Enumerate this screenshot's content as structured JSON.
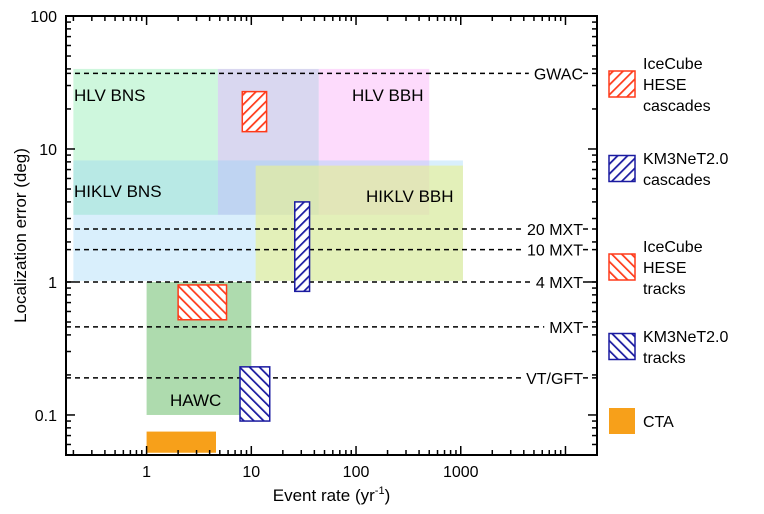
{
  "chart_data": {
    "type": "area",
    "xlabel": "Event rate (yr",
    "xlabel_sup": "-1",
    "xlabel_end": ")",
    "ylabel": "Localization error (deg)",
    "x_scale": "log",
    "y_scale": "log",
    "xlim": [
      0.17,
      20000
    ],
    "ylim": [
      0.05,
      100
    ],
    "x_ticks": [
      {
        "value": 1,
        "label": "1"
      },
      {
        "value": 10,
        "label": "10"
      },
      {
        "value": 100,
        "label": "100"
      },
      {
        "value": 1000,
        "label": "1000"
      }
    ],
    "y_ticks": [
      {
        "value": 0.1,
        "label": "0.1"
      },
      {
        "value": 1,
        "label": "1"
      },
      {
        "value": 10,
        "label": "10"
      },
      {
        "value": 100,
        "label": "100"
      }
    ],
    "grid": false,
    "legend_position": "right, outside",
    "regions": [
      {
        "name": "HLV BNS",
        "x": [
          0.2,
          4.8
        ],
        "y": [
          3.2,
          40
        ],
        "color": "#9ef0bb",
        "opacity": 0.5
      },
      {
        "name": "HLV BBH",
        "x": [
          44,
          500
        ],
        "y": [
          3.2,
          40
        ],
        "color": "#fa98f7",
        "opacity": 0.35
      },
      {
        "name": "",
        "x": [
          4.8,
          44
        ],
        "y": [
          3.2,
          40
        ],
        "color": "#b9b6e3",
        "opacity": 0.55
      },
      {
        "name": "HIKLV BNS",
        "x": [
          0.2,
          1050
        ],
        "y": [
          1.02,
          8.2
        ],
        "color": "#88cef5",
        "opacity": 0.32
      },
      {
        "name": "HIKLV BBH",
        "x": [
          11,
          1050
        ],
        "y": [
          1.02,
          7.5
        ],
        "color": "#e8f08f",
        "opacity": 0.62
      },
      {
        "name": "HAWC",
        "x": [
          1,
          10
        ],
        "y": [
          0.1,
          1
        ],
        "color": "#4cb04c",
        "opacity": 0.45
      }
    ],
    "hatched_boxes": [
      {
        "series": "IceCube HESE cascades",
        "x": [
          8.2,
          14
        ],
        "y": [
          13.5,
          27
        ],
        "color": "#ff3a1a"
      },
      {
        "series": "KM3NeT2.0 cascades",
        "x": [
          26,
          36
        ],
        "y": [
          0.85,
          4
        ],
        "color": "#1a1aa0"
      },
      {
        "series": "IceCube HESE tracks",
        "x": [
          2,
          5.8
        ],
        "y": [
          0.52,
          0.95
        ],
        "color": "#ff3a1a"
      },
      {
        "series": "KM3NeT2.0 tracks",
        "x": [
          7.8,
          15
        ],
        "y": [
          0.09,
          0.23
        ],
        "color": "#1a1aa0"
      }
    ],
    "solid_boxes": [
      {
        "series": "CTA",
        "x": [
          1,
          4.6
        ],
        "y": [
          0.052,
          0.075
        ],
        "color": "#f7a01a"
      }
    ],
    "reference_lines": [
      {
        "label": "GWAC",
        "y": 37
      },
      {
        "label": "20 MXT",
        "y": 2.5
      },
      {
        "label": "10 MXT",
        "y": 1.75
      },
      {
        "label": "4 MXT",
        "y": 1.0
      },
      {
        "label": "MXT",
        "y": 0.46
      },
      {
        "label": "VT/GFT",
        "y": 0.19
      }
    ],
    "legend": [
      {
        "lines": [
          "IceCube",
          "HESE",
          "cascades"
        ],
        "color": "#ff3a1a",
        "pattern": "hatch-cascade"
      },
      {
        "lines": [
          "KM3NeT2.0",
          "cascades"
        ],
        "color": "#1a1aa0",
        "pattern": "hatch-cascade"
      },
      {
        "lines": [
          "IceCube",
          "HESE",
          "tracks"
        ],
        "color": "#ff3a1a",
        "pattern": "hatch-track"
      },
      {
        "lines": [
          "KM3NeT2.0",
          "tracks"
        ],
        "color": "#1a1aa0",
        "pattern": "hatch-track"
      },
      {
        "lines": [
          "CTA"
        ],
        "color": "#f7a01a",
        "pattern": "solid"
      }
    ]
  }
}
